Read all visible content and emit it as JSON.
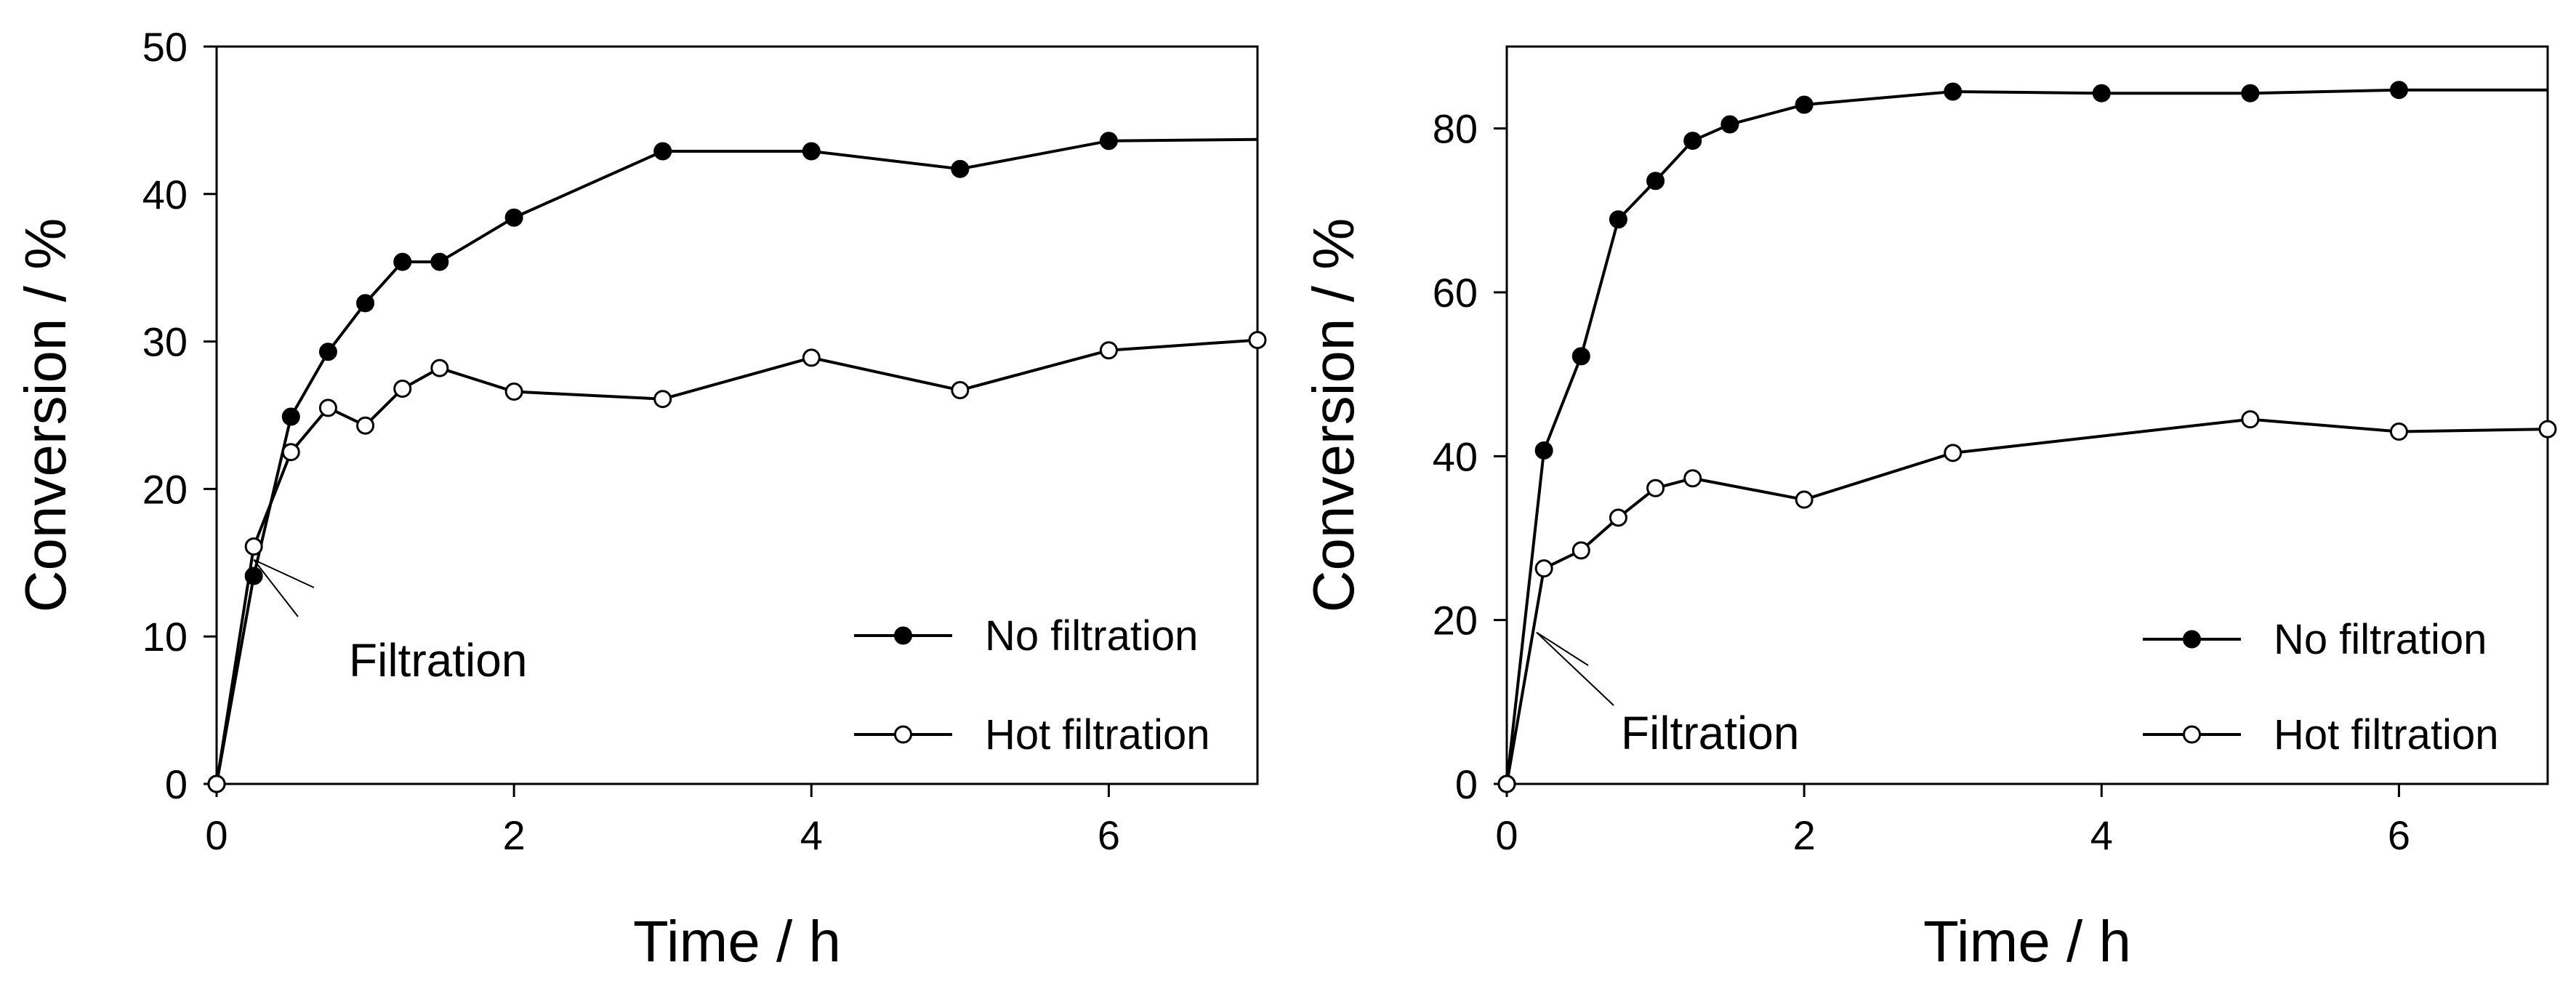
{
  "chart_data": [
    {
      "type": "line",
      "title": "",
      "xlabel": "Time / h",
      "ylabel": "Conversion / %",
      "xlim": [
        0,
        7
      ],
      "ylim": [
        0,
        50
      ],
      "xticks": [
        0,
        2,
        4,
        6
      ],
      "yticks": [
        0,
        10,
        20,
        30,
        40,
        50
      ],
      "legend_position": "bottom-right",
      "grid": false,
      "series": [
        {
          "name": "No filtration",
          "marker": "filled-circle",
          "x": [
            0,
            0.25,
            0.5,
            0.75,
            1,
            1.25,
            1.5,
            2,
            3,
            4,
            5,
            6,
            7
          ],
          "y": [
            0,
            14.1,
            24.9,
            29.3,
            32.6,
            35.4,
            35.4,
            38.4,
            42.9,
            42.9,
            41.7,
            43.6,
            43.7
          ],
          "markers_drawn": [
            true,
            true,
            true,
            true,
            true,
            true,
            true,
            true,
            true,
            true,
            true,
            true,
            false
          ]
        },
        {
          "name": "Hot filtration",
          "marker": "open-circle",
          "x": [
            0,
            0.25,
            0.5,
            0.75,
            1,
            1.25,
            1.5,
            2,
            3,
            4,
            5,
            6,
            7
          ],
          "y": [
            0,
            16.1,
            22.5,
            25.5,
            24.3,
            26.8,
            28.2,
            26.6,
            26.1,
            28.9,
            26.7,
            29.4,
            30.1
          ],
          "markers_drawn": [
            true,
            true,
            true,
            true,
            true,
            true,
            true,
            true,
            true,
            true,
            true,
            true,
            true
          ]
        }
      ],
      "annotations": [
        {
          "text": "Filtration",
          "arrow_to": {
            "x": 0.25,
            "y": 15.2
          }
        }
      ]
    },
    {
      "type": "line",
      "title": "",
      "xlabel": "Time / h",
      "ylabel": "Conversion / %",
      "xlim": [
        0,
        7
      ],
      "ylim": [
        0,
        90
      ],
      "xticks": [
        0,
        2,
        4,
        6
      ],
      "yticks": [
        0,
        20,
        40,
        60,
        80
      ],
      "legend_position": "bottom-right",
      "grid": false,
      "series": [
        {
          "name": "No filtration",
          "marker": "filled-circle",
          "x": [
            0,
            0.25,
            0.5,
            0.75,
            1,
            1.25,
            1.5,
            2,
            3,
            4,
            5,
            6,
            7
          ],
          "y": [
            0,
            40.7,
            52.2,
            68.9,
            73.6,
            78.5,
            80.5,
            82.9,
            84.5,
            84.3,
            84.3,
            84.7,
            84.7
          ],
          "markers_drawn": [
            true,
            true,
            true,
            true,
            true,
            true,
            true,
            true,
            true,
            true,
            true,
            true,
            false
          ]
        },
        {
          "name": "Hot filtration",
          "marker": "open-circle",
          "x": [
            0,
            0.25,
            0.5,
            0.75,
            1,
            1.25,
            2,
            3,
            5,
            6,
            7
          ],
          "y": [
            0,
            26.3,
            28.5,
            32.5,
            36.1,
            37.3,
            34.7,
            40.4,
            44.5,
            43.0,
            43.3
          ],
          "markers_drawn": [
            true,
            true,
            true,
            true,
            true,
            true,
            true,
            true,
            true,
            true,
            true
          ]
        }
      ],
      "annotations": [
        {
          "text": "Filtration",
          "arrow_to": {
            "x": 0.2,
            "y": 18.5
          }
        }
      ]
    }
  ]
}
